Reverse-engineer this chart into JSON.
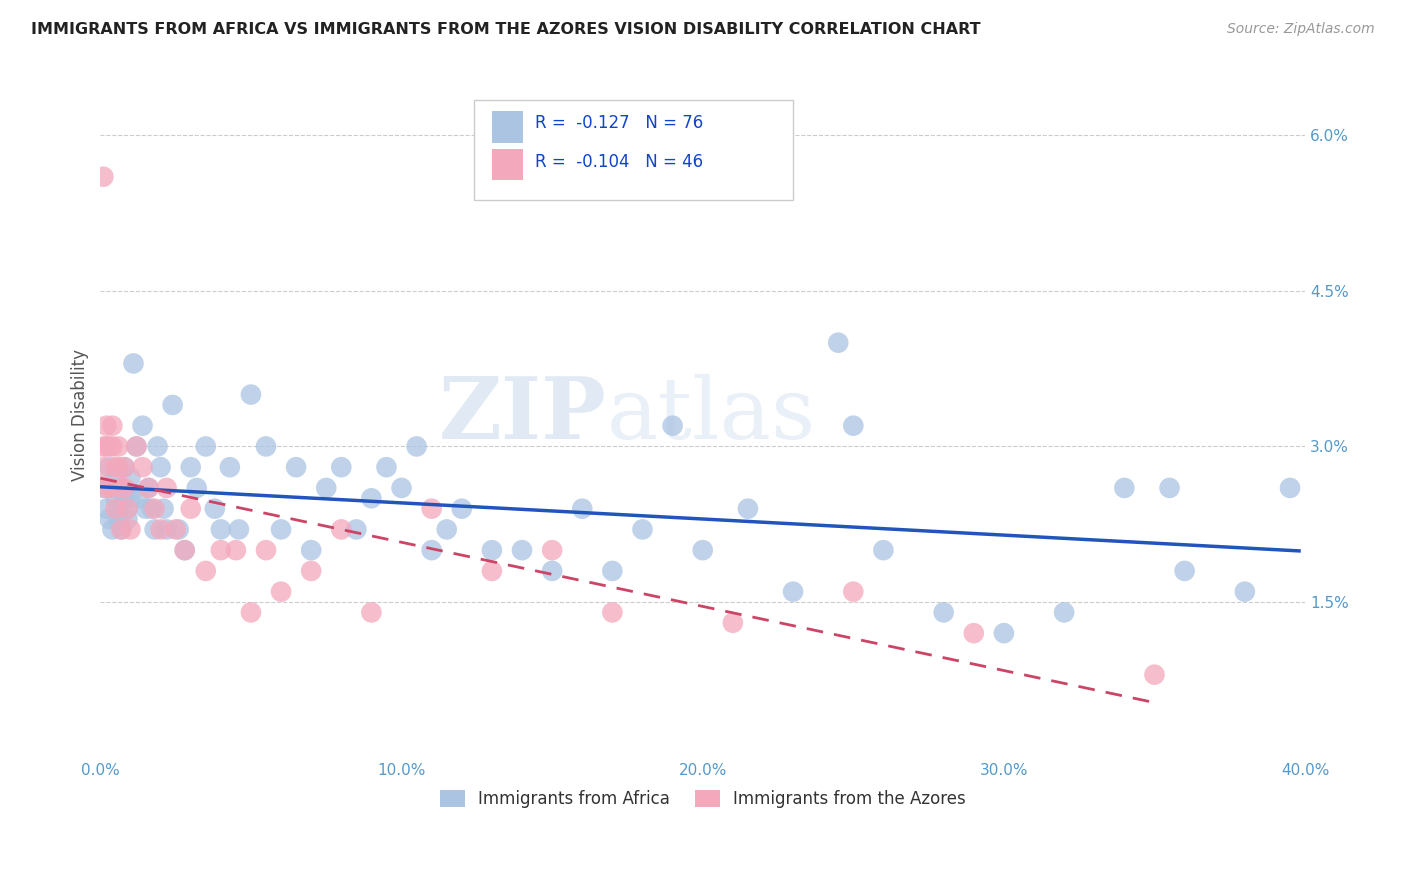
{
  "title": "IMMIGRANTS FROM AFRICA VS IMMIGRANTS FROM THE AZORES VISION DISABILITY CORRELATION CHART",
  "source": "Source: ZipAtlas.com",
  "ylabel": "Vision Disability",
  "legend_label1": "Immigrants from Africa",
  "legend_label2": "Immigrants from the Azores",
  "R1": -0.127,
  "N1": 76,
  "R2": -0.104,
  "N2": 46,
  "color1": "#aac4e2",
  "color2": "#f4a8bc",
  "line_color1": "#2255bb",
  "line_color2": "#cc4466",
  "xlim": [
    0.0,
    0.4
  ],
  "ylim": [
    0.0,
    0.066
  ],
  "xticks": [
    0.0,
    0.1,
    0.2,
    0.3,
    0.4
  ],
  "yticks": [
    0.015,
    0.03,
    0.045,
    0.06
  ],
  "ytick_labels": [
    "1.5%",
    "3.0%",
    "4.5%",
    "6.0%"
  ],
  "xtick_labels": [
    "0.0%",
    "10.0%",
    "20.0%",
    "30.0%",
    "40.0%"
  ],
  "africa_x": [
    0.001,
    0.002,
    0.003,
    0.003,
    0.004,
    0.004,
    0.005,
    0.005,
    0.006,
    0.006,
    0.007,
    0.007,
    0.008,
    0.008,
    0.009,
    0.009,
    0.01,
    0.01,
    0.011,
    0.012,
    0.013,
    0.014,
    0.015,
    0.016,
    0.017,
    0.018,
    0.019,
    0.02,
    0.021,
    0.022,
    0.024,
    0.026,
    0.028,
    0.03,
    0.032,
    0.035,
    0.038,
    0.04,
    0.043,
    0.046,
    0.05,
    0.055,
    0.06,
    0.065,
    0.07,
    0.075,
    0.08,
    0.085,
    0.09,
    0.095,
    0.1,
    0.105,
    0.11,
    0.115,
    0.12,
    0.13,
    0.14,
    0.15,
    0.16,
    0.17,
    0.18,
    0.19,
    0.2,
    0.215,
    0.23,
    0.245,
    0.26,
    0.28,
    0.3,
    0.32,
    0.34,
    0.36,
    0.38,
    0.395,
    0.355,
    0.25
  ],
  "africa_y": [
    0.026,
    0.024,
    0.028,
    0.023,
    0.026,
    0.022,
    0.025,
    0.027,
    0.024,
    0.023,
    0.022,
    0.026,
    0.025,
    0.028,
    0.024,
    0.023,
    0.027,
    0.025,
    0.038,
    0.03,
    0.025,
    0.032,
    0.024,
    0.026,
    0.024,
    0.022,
    0.03,
    0.028,
    0.024,
    0.022,
    0.034,
    0.022,
    0.02,
    0.028,
    0.026,
    0.03,
    0.024,
    0.022,
    0.028,
    0.022,
    0.035,
    0.03,
    0.022,
    0.028,
    0.02,
    0.026,
    0.028,
    0.022,
    0.025,
    0.028,
    0.026,
    0.03,
    0.02,
    0.022,
    0.024,
    0.02,
    0.02,
    0.018,
    0.024,
    0.018,
    0.022,
    0.032,
    0.02,
    0.024,
    0.016,
    0.04,
    0.02,
    0.014,
    0.012,
    0.014,
    0.026,
    0.018,
    0.016,
    0.026,
    0.026,
    0.032
  ],
  "azores_x": [
    0.001,
    0.001,
    0.001,
    0.002,
    0.002,
    0.002,
    0.003,
    0.003,
    0.004,
    0.004,
    0.005,
    0.005,
    0.006,
    0.006,
    0.007,
    0.007,
    0.008,
    0.008,
    0.009,
    0.01,
    0.012,
    0.014,
    0.016,
    0.018,
    0.02,
    0.022,
    0.025,
    0.028,
    0.03,
    0.035,
    0.04,
    0.045,
    0.05,
    0.055,
    0.06,
    0.07,
    0.08,
    0.09,
    0.11,
    0.13,
    0.15,
    0.17,
    0.21,
    0.25,
    0.29,
    0.35
  ],
  "azores_y": [
    0.056,
    0.03,
    0.028,
    0.032,
    0.03,
    0.026,
    0.03,
    0.026,
    0.032,
    0.03,
    0.028,
    0.024,
    0.03,
    0.028,
    0.026,
    0.022,
    0.026,
    0.028,
    0.024,
    0.022,
    0.03,
    0.028,
    0.026,
    0.024,
    0.022,
    0.026,
    0.022,
    0.02,
    0.024,
    0.018,
    0.02,
    0.02,
    0.014,
    0.02,
    0.016,
    0.018,
    0.022,
    0.014,
    0.024,
    0.018,
    0.02,
    0.014,
    0.013,
    0.016,
    0.012,
    0.008
  ],
  "watermark_zip": "ZIP",
  "watermark_atlas": "atlas",
  "background_color": "#ffffff",
  "grid_color": "#cccccc",
  "tick_color": "#5599cc"
}
